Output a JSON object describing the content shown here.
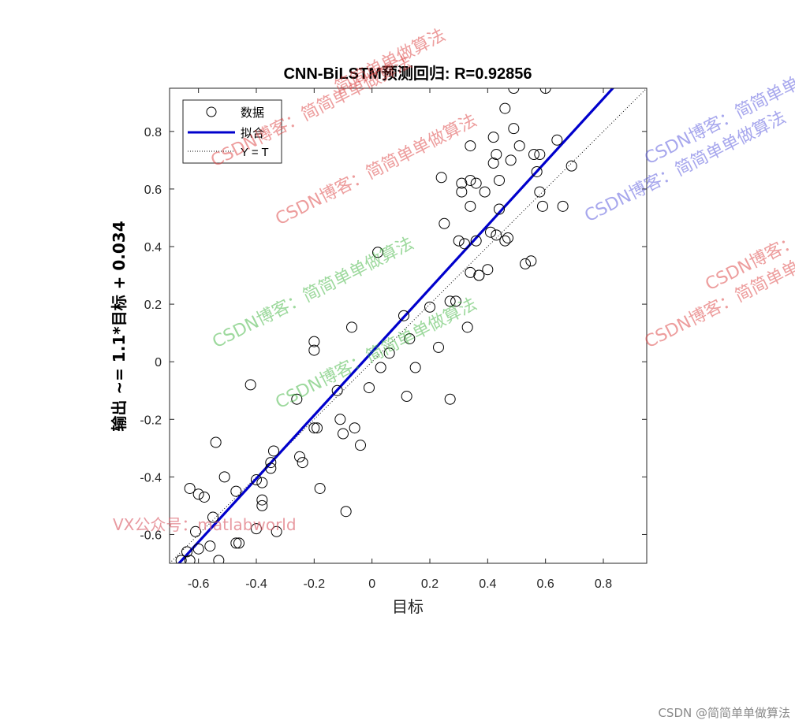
{
  "chart_data": {
    "type": "scatter",
    "title": "CNN-BiLSTM预测回归: R=0.92856",
    "xlabel": "目标",
    "ylabel": "输出 ~= 1.1*目标 + 0.034",
    "xlim": [
      -0.7,
      0.95
    ],
    "ylim": [
      -0.7,
      0.95
    ],
    "xticks": [
      "-0.6",
      "-0.4",
      "-0.2",
      "0",
      "0.2",
      "0.4",
      "0.6",
      "0.8"
    ],
    "yticks": [
      "-0.6",
      "-0.4",
      "-0.2",
      "0",
      "0.2",
      "0.4",
      "0.6",
      "0.8"
    ],
    "grid": false,
    "legend_position": "top-left",
    "legend": [
      "数据",
      "拟合",
      "Y = T"
    ],
    "fit_line": {
      "slope": 1.1,
      "intercept": 0.034,
      "color": "#0000cc"
    },
    "identity_line": {
      "slope": 1,
      "intercept": 0,
      "style": "dotted"
    },
    "points": [
      [
        -0.66,
        -0.69
      ],
      [
        -0.63,
        -0.69
      ],
      [
        -0.64,
        -0.66
      ],
      [
        -0.6,
        -0.65
      ],
      [
        -0.56,
        -0.64
      ],
      [
        -0.53,
        -0.69
      ],
      [
        -0.63,
        -0.44
      ],
      [
        -0.6,
        -0.46
      ],
      [
        -0.58,
        -0.47
      ],
      [
        -0.61,
        -0.59
      ],
      [
        -0.55,
        -0.54
      ],
      [
        -0.51,
        -0.4
      ],
      [
        -0.54,
        -0.28
      ],
      [
        -0.47,
        -0.63
      ],
      [
        -0.46,
        -0.63
      ],
      [
        -0.47,
        -0.45
      ],
      [
        -0.4,
        -0.58
      ],
      [
        -0.4,
        -0.41
      ],
      [
        -0.38,
        -0.42
      ],
      [
        -0.38,
        -0.48
      ],
      [
        -0.38,
        -0.5
      ],
      [
        -0.35,
        -0.37
      ],
      [
        -0.35,
        -0.35
      ],
      [
        -0.34,
        -0.31
      ],
      [
        -0.33,
        -0.59
      ],
      [
        -0.42,
        -0.08
      ],
      [
        -0.26,
        -0.13
      ],
      [
        -0.25,
        -0.33
      ],
      [
        -0.24,
        -0.35
      ],
      [
        -0.2,
        0.07
      ],
      [
        -0.2,
        0.04
      ],
      [
        -0.19,
        -0.23
      ],
      [
        -0.2,
        -0.23
      ],
      [
        -0.18,
        -0.44
      ],
      [
        -0.12,
        -0.1
      ],
      [
        -0.11,
        -0.2
      ],
      [
        -0.1,
        -0.25
      ],
      [
        -0.09,
        -0.52
      ],
      [
        -0.07,
        0.12
      ],
      [
        -0.06,
        -0.23
      ],
      [
        -0.04,
        -0.29
      ],
      [
        -0.01,
        -0.09
      ],
      [
        0.02,
        0.38
      ],
      [
        0.03,
        -0.02
      ],
      [
        0.06,
        0.03
      ],
      [
        0.11,
        0.16
      ],
      [
        0.12,
        -0.12
      ],
      [
        0.13,
        0.08
      ],
      [
        0.15,
        -0.02
      ],
      [
        0.2,
        0.19
      ],
      [
        0.23,
        0.05
      ],
      [
        0.24,
        0.64
      ],
      [
        0.25,
        0.48
      ],
      [
        0.27,
        0.21
      ],
      [
        0.27,
        -0.13
      ],
      [
        0.29,
        0.21
      ],
      [
        0.3,
        0.42
      ],
      [
        0.31,
        0.59
      ],
      [
        0.31,
        0.62
      ],
      [
        0.32,
        0.41
      ],
      [
        0.33,
        0.12
      ],
      [
        0.34,
        0.75
      ],
      [
        0.34,
        0.63
      ],
      [
        0.34,
        0.54
      ],
      [
        0.34,
        0.31
      ],
      [
        0.36,
        0.62
      ],
      [
        0.36,
        0.42
      ],
      [
        0.37,
        0.3
      ],
      [
        0.39,
        0.59
      ],
      [
        0.4,
        0.32
      ],
      [
        0.41,
        0.45
      ],
      [
        0.42,
        0.69
      ],
      [
        0.42,
        0.78
      ],
      [
        0.43,
        0.72
      ],
      [
        0.43,
        0.44
      ],
      [
        0.44,
        0.63
      ],
      [
        0.44,
        0.53
      ],
      [
        0.46,
        0.88
      ],
      [
        0.46,
        0.42
      ],
      [
        0.47,
        0.43
      ],
      [
        0.48,
        0.7
      ],
      [
        0.49,
        0.81
      ],
      [
        0.49,
        0.95
      ],
      [
        0.51,
        0.75
      ],
      [
        0.53,
        0.34
      ],
      [
        0.56,
        0.72
      ],
      [
        0.57,
        0.66
      ],
      [
        0.58,
        0.59
      ],
      [
        0.59,
        0.54
      ],
      [
        0.6,
        0.95
      ],
      [
        0.64,
        0.77
      ],
      [
        0.66,
        0.54
      ],
      [
        0.69,
        0.68
      ],
      [
        0.55,
        0.35
      ],
      [
        0.37,
        0.3
      ],
      [
        0.58,
        0.72
      ]
    ]
  },
  "watermarks": {
    "csdn": "CSDN博客：简简单单做算法",
    "partial": "简简单单做算法",
    "vx": "VX公众号：matlabworld"
  },
  "footer": "CSDN @简简单单做算法"
}
